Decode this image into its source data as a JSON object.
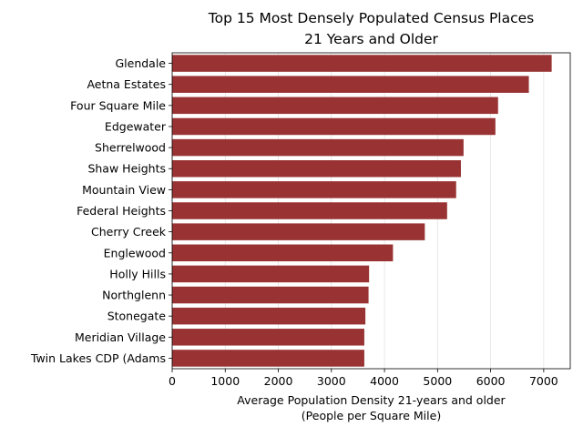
{
  "chart_data": {
    "type": "bar",
    "orientation": "horizontal",
    "title": [
      "Top 15 Most Densely Populated Census Places",
      "21 Years and Older"
    ],
    "xlabel": [
      "Average Population Density 21-years and older",
      "(People per Square Mile)"
    ],
    "ylabel": "",
    "categories": [
      "Glendale",
      "Aetna Estates",
      "Four Square Mile",
      "Edgewater",
      "Sherrelwood",
      "Shaw Heights",
      "Mountain View",
      "Federal Heights",
      "Cherry Creek",
      "Englewood",
      "Holly Hills",
      "Northglenn",
      "Stonegate",
      "Meridian Village",
      "Twin Lakes CDP (Adams"
    ],
    "values": [
      7150,
      6720,
      6140,
      6090,
      5490,
      5440,
      5350,
      5180,
      4760,
      4160,
      3710,
      3700,
      3640,
      3620,
      3620
    ],
    "xlim": [
      0,
      7500
    ],
    "xticks": [
      0,
      1000,
      2000,
      3000,
      4000,
      5000,
      6000,
      7000
    ],
    "grid": "vertical",
    "bar_color": "#993333"
  }
}
